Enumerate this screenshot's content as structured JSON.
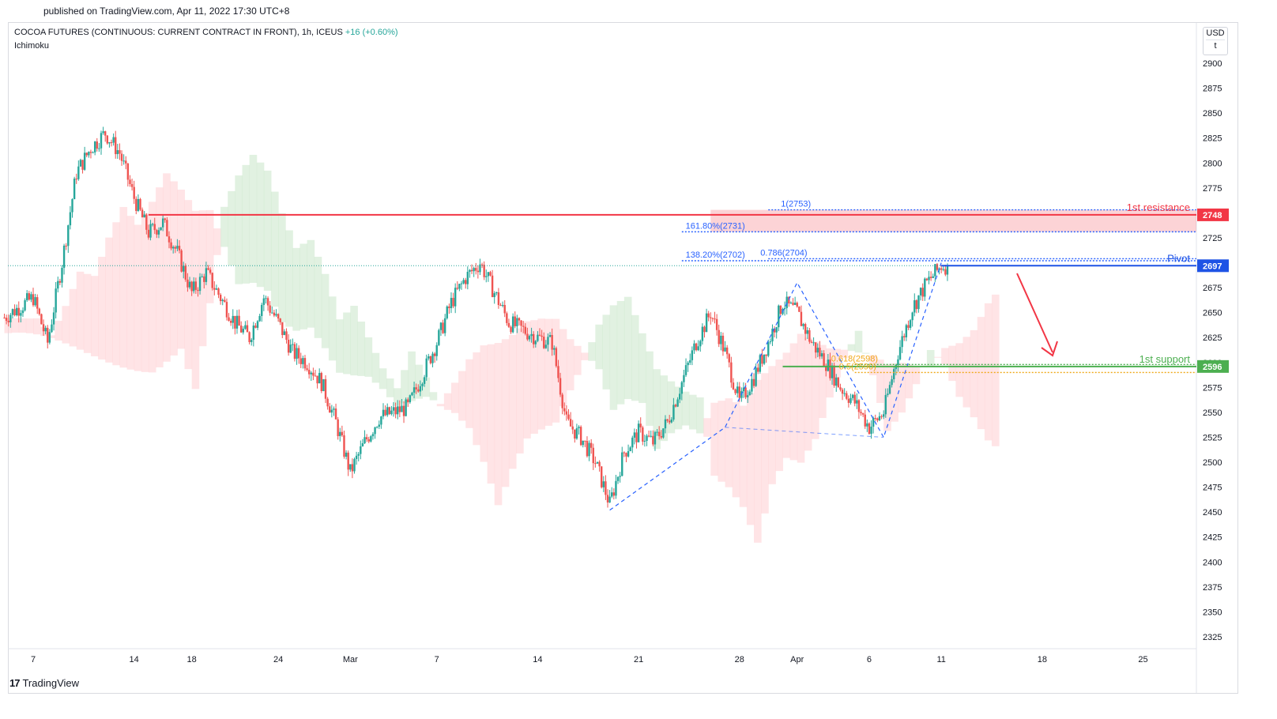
{
  "header": {
    "published": "published on TradingView.com, Apr 11, 2022 17:30 UTC+8"
  },
  "legend": {
    "symbol": "COCOA FUTURES (CONTINUOUS: CURRENT CONTRACT IN FRONT), 1h, ICEUS",
    "change": "+16 (+0.60%)",
    "indicator": "Ichimoku"
  },
  "currency": {
    "code": "USD",
    "suffix": "t"
  },
  "footer": {
    "brand": "TradingView",
    "logo_icon": "tradingview-logo-icon"
  },
  "colors": {
    "up": "#26a69a",
    "down": "#ef5350",
    "resistance": "#f23645",
    "support": "#4caf50",
    "pivot": "#1e53e5",
    "fib_blue": "#2962ff",
    "fib_orange": "#f0a818",
    "cloud_green": "#c8e6c9",
    "cloud_red": "#ffcdd2"
  },
  "chart_data": {
    "type": "candlestick",
    "title": "",
    "y_axis": {
      "ticks": [
        2325,
        2350,
        2375,
        2400,
        2425,
        2450,
        2475,
        2500,
        2525,
        2550,
        2575,
        2600,
        2625,
        2650,
        2675,
        2700,
        2725,
        2750,
        2775,
        2800,
        2825,
        2850,
        2875,
        2900
      ],
      "range": [
        2315,
        2930
      ]
    },
    "x_axis": {
      "ticks": [
        "7",
        "14",
        "18",
        "24",
        "Mar",
        "7",
        "14",
        "21",
        "28",
        "Apr",
        "6",
        "11",
        "18",
        "25"
      ],
      "range": [
        "Feb 5",
        "Apr 27"
      ]
    },
    "price_labels": [
      {
        "name": "resistance",
        "value": "2748"
      },
      {
        "name": "pivot",
        "value": "2697"
      },
      {
        "name": "support",
        "value": "2596"
      }
    ],
    "levels": [
      {
        "label": "1st resistance",
        "value": 2748
      },
      {
        "label": "Pivot",
        "value": 2697
      },
      {
        "label": "1st support",
        "value": 2596
      }
    ],
    "fib_labels": [
      {
        "text": "1(2753)",
        "value": 2753
      },
      {
        "text": "161.80%(2731)",
        "value": 2731
      },
      {
        "text": "138.20%(2702)",
        "value": 2702
      },
      {
        "text": "0.786(2704)",
        "value": 2704
      },
      {
        "text": "0.618(2598)",
        "value": 2598
      },
      {
        "text": "0.5(2590)",
        "value": 2590
      }
    ],
    "series_anchor_close": [
      [
        "Feb 5",
        2645
      ],
      [
        "Feb 7",
        2665
      ],
      [
        "Feb 8",
        2620
      ],
      [
        "Feb 9",
        2700
      ],
      [
        "Feb 10",
        2790
      ],
      [
        "Feb 11",
        2815
      ],
      [
        "Feb 12",
        2830
      ],
      [
        "Feb 13",
        2810
      ],
      [
        "Feb 14",
        2765
      ],
      [
        "Feb 15",
        2730
      ],
      [
        "Feb 16",
        2740
      ],
      [
        "Feb 17",
        2710
      ],
      [
        "Feb 18",
        2670
      ],
      [
        "Feb 19",
        2690
      ],
      [
        "Feb 21",
        2640
      ],
      [
        "Feb 22",
        2625
      ],
      [
        "Feb 23",
        2665
      ],
      [
        "Feb 24",
        2640
      ],
      [
        "Feb 25",
        2610
      ],
      [
        "Feb 26",
        2600
      ],
      [
        "Feb 27",
        2580
      ],
      [
        "Feb 28",
        2540
      ],
      [
        "Mar 1",
        2490
      ],
      [
        "Mar 2",
        2520
      ],
      [
        "Mar 3",
        2545
      ],
      [
        "Mar 5",
        2555
      ],
      [
        "Mar 7",
        2620
      ],
      [
        "Mar 8",
        2660
      ],
      [
        "Mar 9",
        2685
      ],
      [
        "Mar 10",
        2700
      ],
      [
        "Mar 11",
        2670
      ],
      [
        "Mar 12",
        2640
      ],
      [
        "Mar 14",
        2625
      ],
      [
        "Mar 15",
        2620
      ],
      [
        "Mar 16",
        2540
      ],
      [
        "Mar 17",
        2525
      ],
      [
        "Mar 18",
        2500
      ],
      [
        "Mar 19",
        2458
      ],
      [
        "Mar 20",
        2510
      ],
      [
        "Mar 21",
        2530
      ],
      [
        "Mar 22",
        2520
      ],
      [
        "Mar 23",
        2540
      ],
      [
        "Mar 24",
        2580
      ],
      [
        "Mar 25",
        2620
      ],
      [
        "Mar 26",
        2650
      ],
      [
        "Mar 27",
        2610
      ],
      [
        "Mar 28",
        2560
      ],
      [
        "Mar 29",
        2585
      ],
      [
        "Mar 30",
        2620
      ],
      [
        "Mar 31",
        2660
      ],
      [
        "Apr 1",
        2650
      ],
      [
        "Apr 2",
        2620
      ],
      [
        "Apr 3",
        2600
      ],
      [
        "Apr 4",
        2575
      ],
      [
        "Apr 5",
        2560
      ],
      [
        "Apr 6",
        2535
      ],
      [
        "Apr 7",
        2550
      ],
      [
        "Apr 8",
        2610
      ],
      [
        "Apr 9",
        2655
      ],
      [
        "Apr 10",
        2680
      ],
      [
        "Apr 11",
        2697
      ]
    ]
  }
}
